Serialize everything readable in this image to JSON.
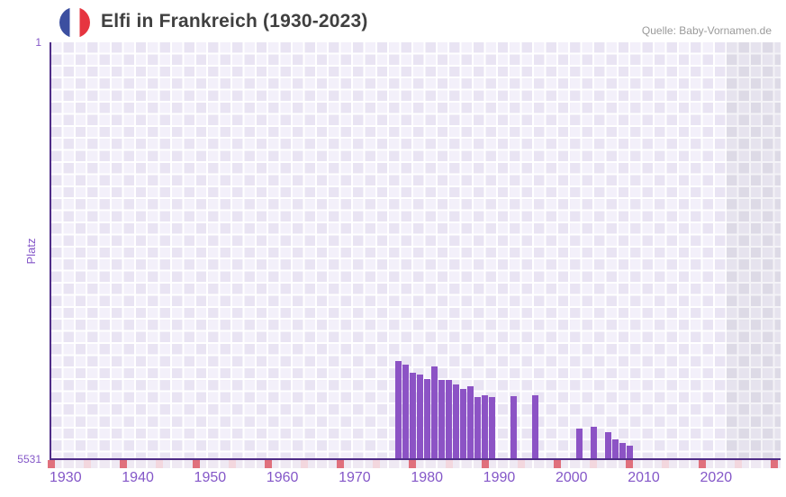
{
  "header": {
    "title": "Elfi in Frankreich (1930-2023)",
    "source": "Quelle: Baby-Vornamen.de"
  },
  "flag": {
    "icon": "france-flag-icon",
    "colors": {
      "blue": "#3c4fa0",
      "white": "#ffffff",
      "red": "#e63540"
    }
  },
  "chart_data": {
    "type": "bar",
    "title": "Elfi in Frankreich (1930-2023)",
    "xlabel": "",
    "ylabel": "Platz",
    "x_range": [
      1930,
      2023
    ],
    "y_axis": {
      "min_rank_label": "1",
      "max_rank_label": "5531",
      "min": 1,
      "max": 5531,
      "inverted": true
    },
    "x_ticks": {
      "decade_years": [
        1930,
        1940,
        1950,
        1960,
        1970,
        1980,
        1990,
        2000,
        2010,
        2020,
        2030
      ],
      "half_decade_years": [
        1935,
        1945,
        1955,
        1965,
        1975,
        1985,
        1995,
        2005,
        2015,
        2025
      ],
      "labels": [
        "1930",
        "1940",
        "1950",
        "1960",
        "1970",
        "1980",
        "1990",
        "2000",
        "2010",
        "2020"
      ]
    },
    "points": [
      {
        "year": 1978,
        "platz": 4240
      },
      {
        "year": 1979,
        "platz": 4290
      },
      {
        "year": 1980,
        "platz": 4390
      },
      {
        "year": 1981,
        "platz": 4420
      },
      {
        "year": 1982,
        "platz": 4480
      },
      {
        "year": 1983,
        "platz": 4310
      },
      {
        "year": 1984,
        "platz": 4490
      },
      {
        "year": 1985,
        "platz": 4490
      },
      {
        "year": 1986,
        "platz": 4550
      },
      {
        "year": 1987,
        "platz": 4610
      },
      {
        "year": 1988,
        "platz": 4570
      },
      {
        "year": 1989,
        "platz": 4715
      },
      {
        "year": 1990,
        "platz": 4695
      },
      {
        "year": 1991,
        "platz": 4715
      },
      {
        "year": 1994,
        "platz": 4710
      },
      {
        "year": 1997,
        "platz": 4695
      },
      {
        "year": 2003,
        "platz": 5140
      },
      {
        "year": 2005,
        "platz": 5110
      },
      {
        "year": 2007,
        "platz": 5185
      },
      {
        "year": 2008,
        "platz": 5275
      },
      {
        "year": 2009,
        "platz": 5330
      },
      {
        "year": 2010,
        "platz": 5360
      }
    ],
    "grid": "checkerboard",
    "legend": "none",
    "colors": {
      "bar": "#8c53c5",
      "axis_line": "#4f2d87",
      "tick_label": "#8457c8",
      "decade_tick": "#e0707c",
      "half_decade_tick": "#f3d7de",
      "grid_cell_light": "#f3f0fa",
      "grid_cell_dark": "#e9e4f3",
      "padding_cell_light": "#e6e3ee",
      "padding_cell_dark": "#dddae6",
      "tick_strip_cell": "#efe9f3",
      "title_text": "#404040",
      "source_text": "#9a9a9a"
    }
  }
}
